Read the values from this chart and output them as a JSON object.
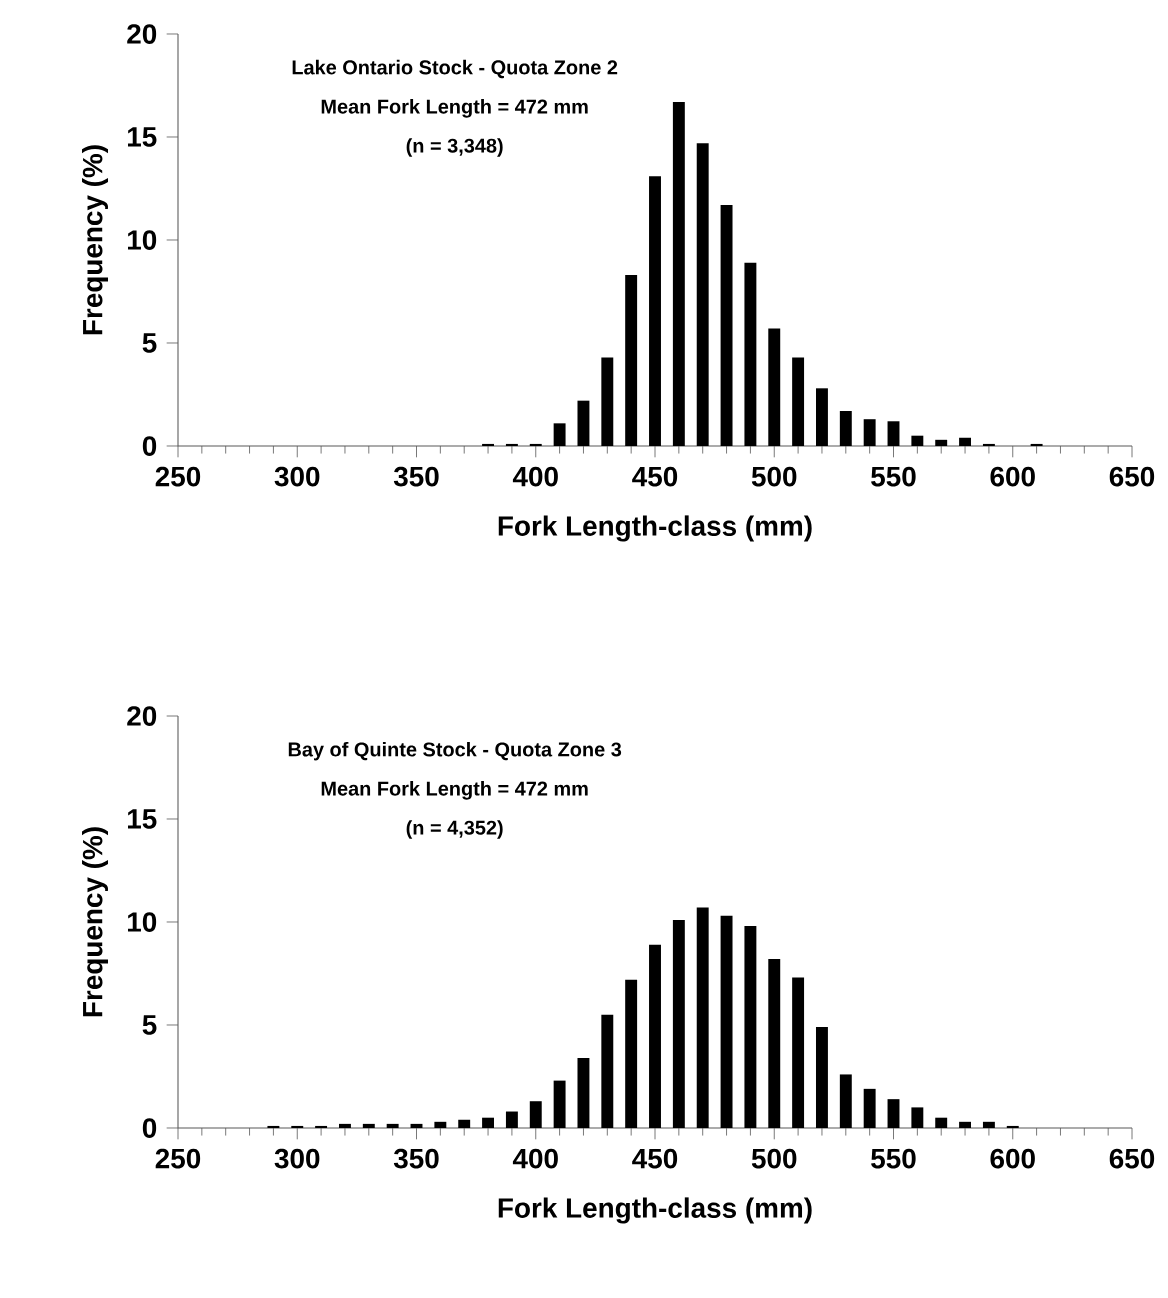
{
  "chart_data": [
    {
      "type": "bar",
      "xlabel": "Fork Length-class (mm)",
      "ylabel": "Frequency (%)",
      "annotations": [
        "Lake Ontario Stock - Quota Zone 2",
        "Mean Fork Length = 472 mm",
        "(n = 3,348)"
      ],
      "x": [
        380,
        390,
        400,
        410,
        420,
        430,
        440,
        450,
        460,
        470,
        480,
        490,
        500,
        510,
        520,
        530,
        540,
        550,
        560,
        570,
        580,
        590,
        600,
        610
      ],
      "values": [
        0.1,
        0.1,
        0.1,
        1.1,
        2.2,
        4.3,
        8.3,
        13.1,
        16.7,
        14.7,
        11.7,
        8.9,
        5.7,
        4.3,
        2.8,
        1.7,
        1.3,
        1.2,
        0.5,
        0.3,
        0.4,
        0.1,
        null,
        0.1
      ],
      "color": "#000000",
      "xlim": [
        250,
        650
      ],
      "ylim": [
        0,
        20
      ],
      "xticks": [
        250,
        300,
        350,
        400,
        450,
        500,
        550,
        600,
        650
      ],
      "yticks": [
        0,
        5,
        10,
        15,
        20
      ]
    },
    {
      "type": "bar",
      "xlabel": "Fork Length-class (mm)",
      "ylabel": "Frequency (%)",
      "annotations": [
        "Bay of Quinte Stock - Quota Zone 3",
        "Mean Fork Length = 472 mm",
        "(n = 4,352)"
      ],
      "x": [
        290,
        300,
        310,
        320,
        330,
        340,
        350,
        360,
        370,
        380,
        390,
        400,
        410,
        420,
        430,
        440,
        450,
        460,
        470,
        480,
        490,
        500,
        510,
        520,
        530,
        540,
        550,
        560,
        570,
        580,
        590,
        600
      ],
      "values": [
        0.1,
        0.1,
        0.1,
        0.2,
        0.2,
        0.2,
        0.2,
        0.3,
        0.4,
        0.5,
        0.8,
        1.3,
        2.3,
        3.4,
        5.5,
        7.2,
        8.9,
        10.1,
        10.7,
        10.3,
        9.8,
        8.2,
        7.3,
        4.9,
        2.6,
        1.9,
        1.4,
        1.0,
        0.5,
        0.3,
        0.3,
        0.1
      ],
      "color": "#000000",
      "xlim": [
        250,
        650
      ],
      "ylim": [
        0,
        20
      ],
      "xticks": [
        250,
        300,
        350,
        400,
        450,
        500,
        550,
        600,
        650
      ],
      "yticks": [
        0,
        5,
        10,
        15,
        20
      ]
    }
  ]
}
